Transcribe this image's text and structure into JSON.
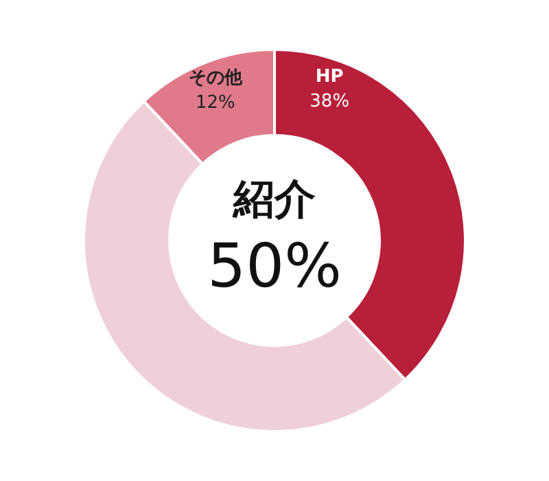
{
  "chart_data": {
    "type": "donut",
    "categories": [
      "HP",
      "紹介",
      "その他"
    ],
    "values": [
      38,
      50,
      12
    ],
    "colors": [
      "#b81f3a",
      "#f0d0d8",
      "#e07a8a"
    ],
    "value_labels": [
      "38%",
      "50%",
      "12%"
    ],
    "legend": false
  }
}
